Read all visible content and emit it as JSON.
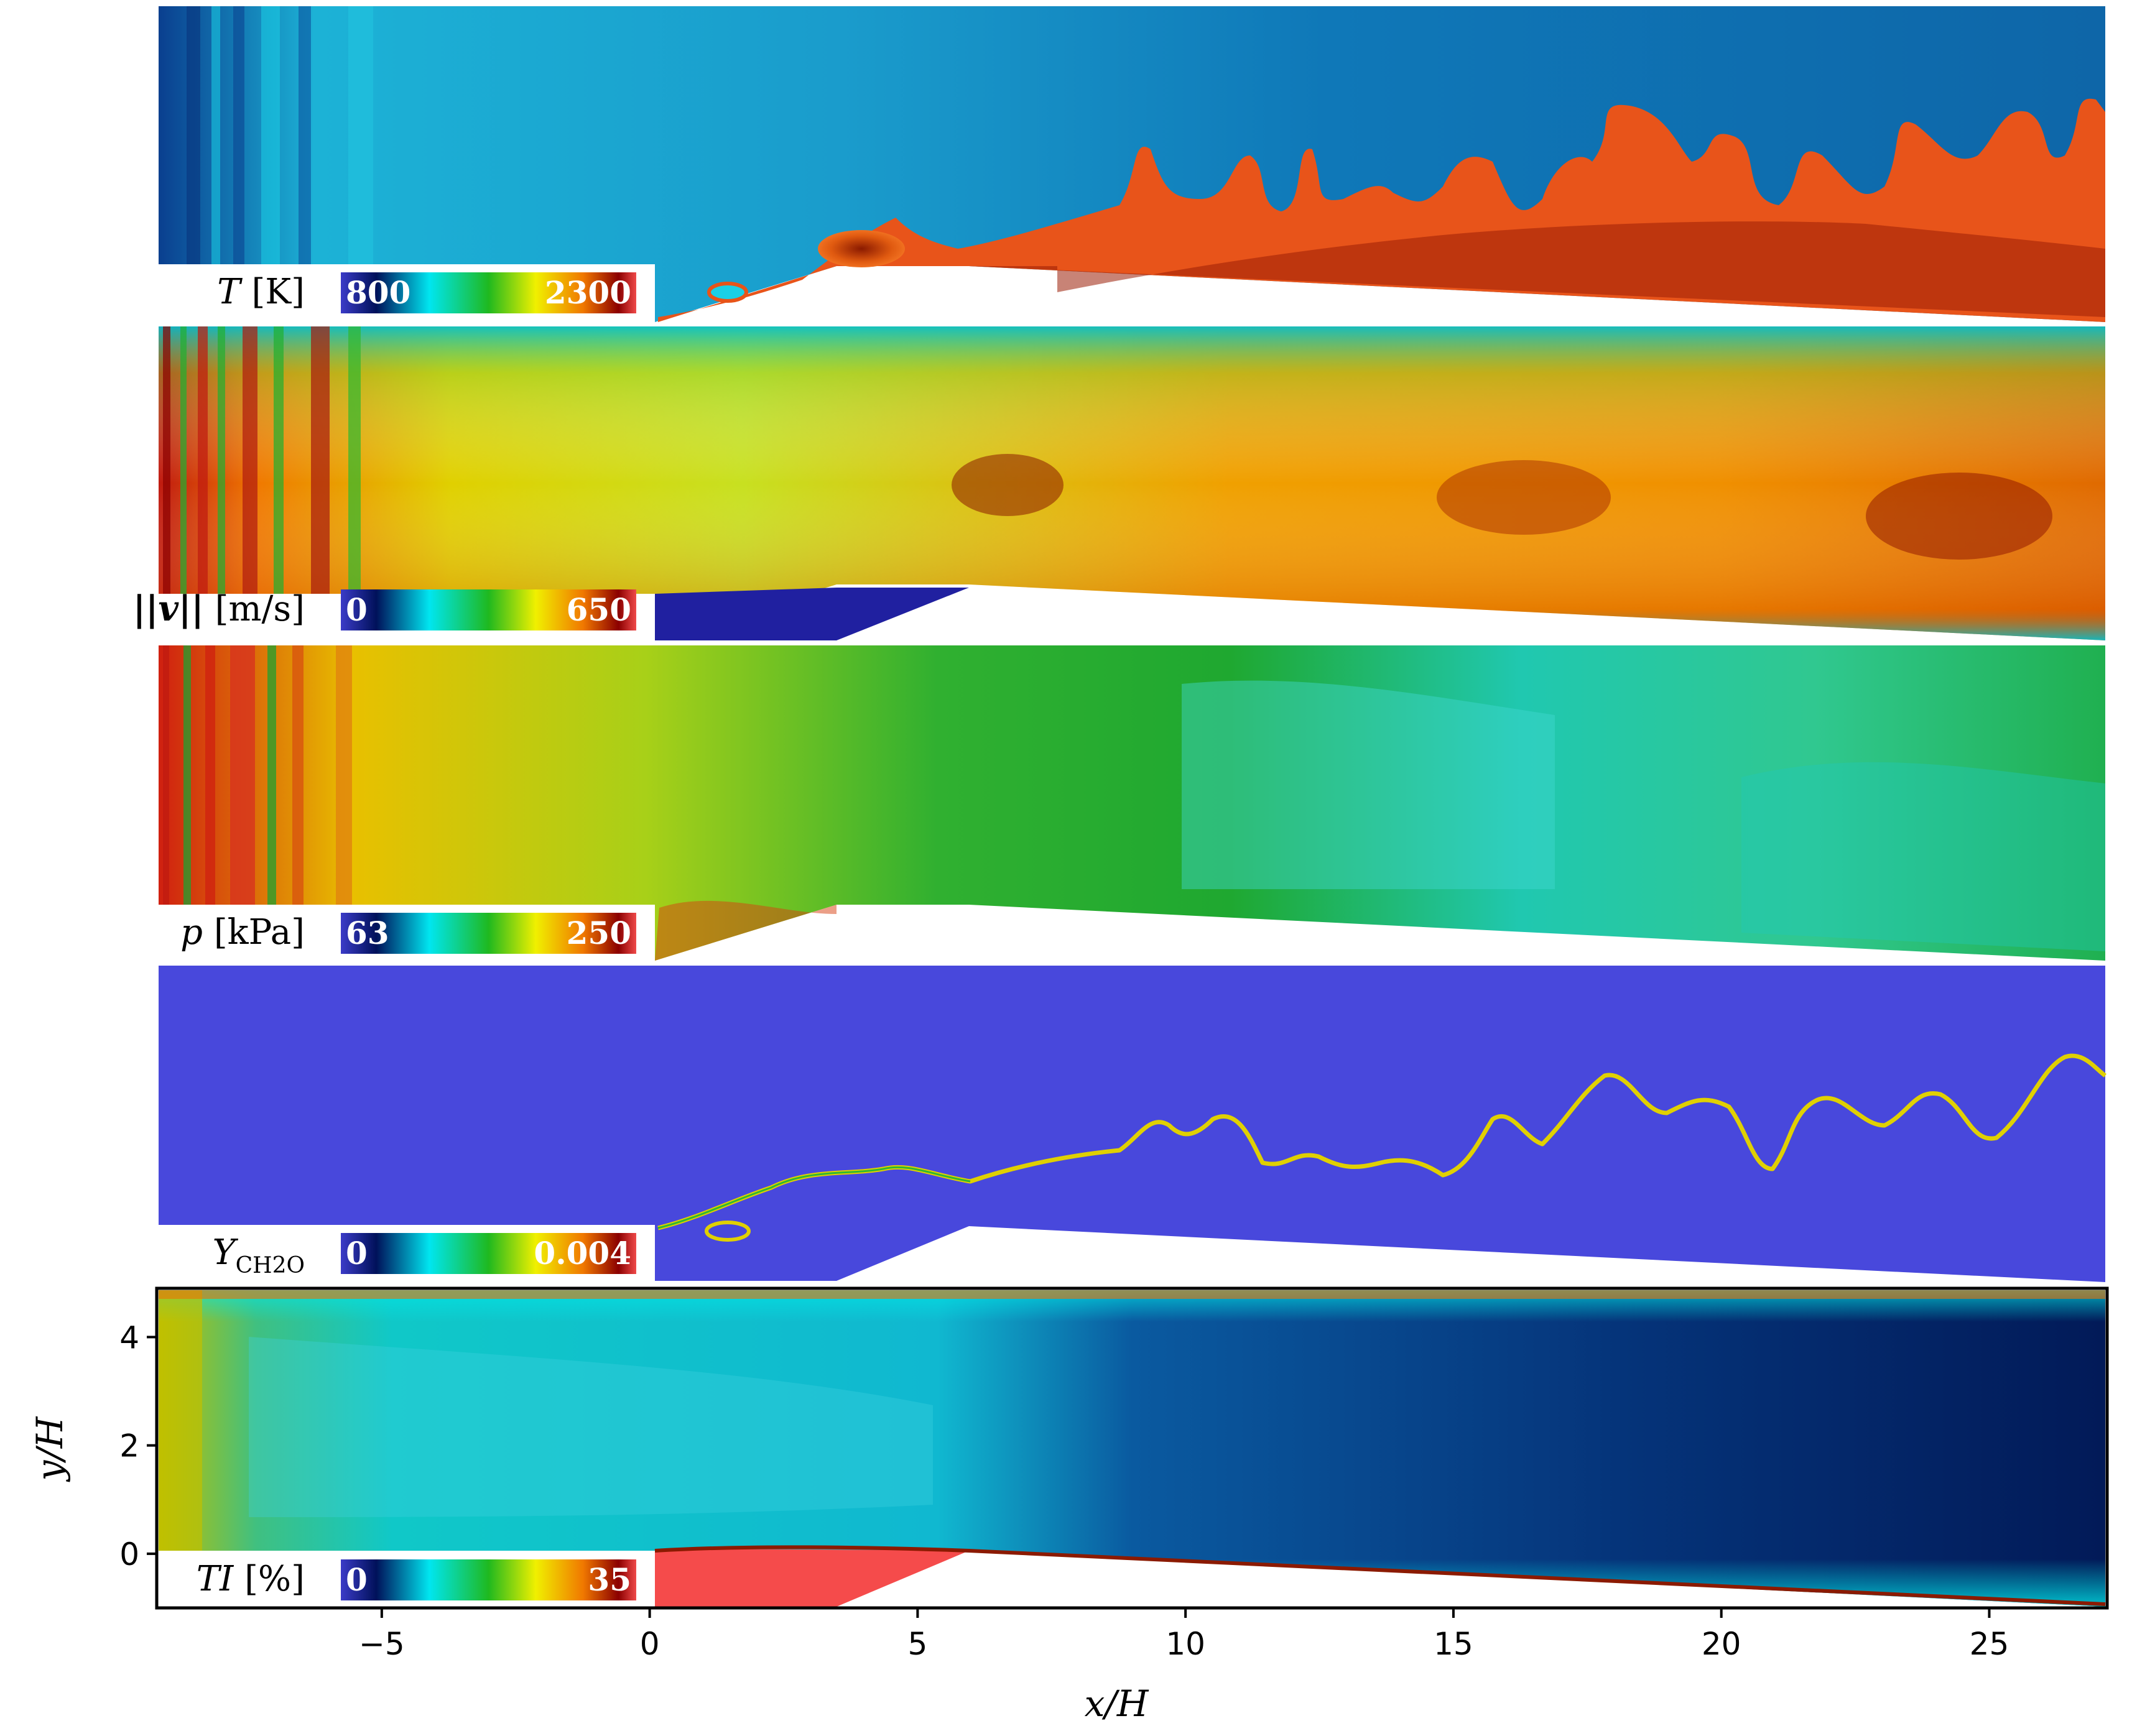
{
  "panels": [
    {
      "id": "T",
      "label_main": "T",
      "label_unit": " [K]",
      "cb_min": "800",
      "cb_max": "2300"
    },
    {
      "id": "vel",
      "label_main": "||v||",
      "label_unit": " [m/s]",
      "cb_min": "0",
      "cb_max": "650"
    },
    {
      "id": "p",
      "label_main": "p",
      "label_unit": " [kPa]",
      "cb_min": "63",
      "cb_max": "250"
    },
    {
      "id": "Y",
      "label_main": "Y",
      "label_sub": "CH2O",
      "cb_min": "0",
      "cb_max": "0.004"
    },
    {
      "id": "TI",
      "label_main": "TI",
      "label_unit": " [%]",
      "cb_min": "0",
      "cb_max": "35"
    }
  ],
  "axes": {
    "xlabel": "x/H",
    "ylabel": "y/H",
    "xticks": [
      "−5",
      "0",
      "5",
      "10",
      "15",
      "20",
      "25"
    ],
    "xtick_values": [
      -5,
      0,
      5,
      10,
      15,
      20,
      25
    ],
    "yticks": [
      "0",
      "2",
      "4"
    ],
    "ytick_values": [
      0,
      2,
      4
    ],
    "xlim": [
      -9.2,
      27.2
    ],
    "ylim": [
      -1.0,
      4.9
    ]
  },
  "colors": {
    "colormap": [
      "#3b3bc8",
      "#00115a",
      "#00e6f0",
      "#1fb91f",
      "#f0f000",
      "#f07800",
      "#8b0000",
      "#f04a4a"
    ],
    "Y_background": "#4848dc",
    "TI_cavity": "#f54b4b"
  }
}
